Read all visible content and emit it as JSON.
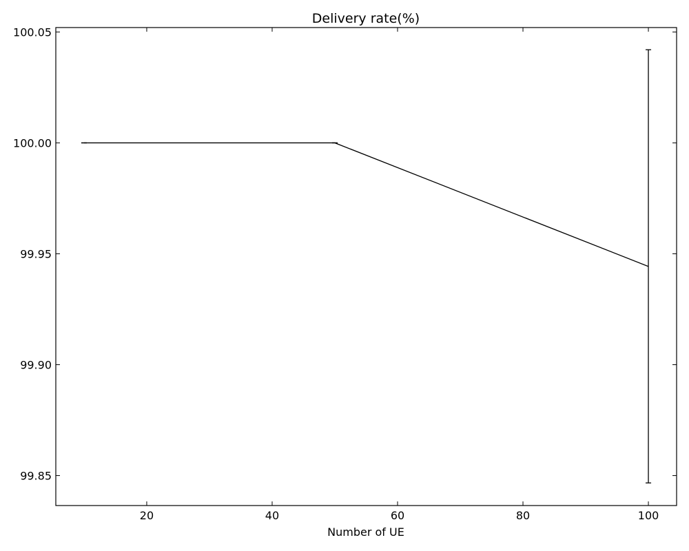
{
  "chart_data": {
    "type": "line",
    "title": "Delivery rate(%)",
    "xlabel": "Number of UE",
    "ylabel": "",
    "xlim": [
      5.5,
      104.5
    ],
    "ylim": [
      99.8365,
      100.052
    ],
    "xticks": [
      20,
      40,
      60,
      80,
      100
    ],
    "xtick_labels": [
      "20",
      "40",
      "60",
      "80",
      "100"
    ],
    "yticks": [
      99.85,
      99.9,
      99.95,
      100.0,
      100.05
    ],
    "ytick_labels": [
      "99.85",
      "99.90",
      "99.95",
      "100.00",
      "100.05"
    ],
    "grid": false,
    "series": [
      {
        "color": "#000000",
        "x": [
          10,
          50,
          100
        ],
        "y": [
          100.0,
          100.0,
          99.9443
        ],
        "yerr_low": [
          100.0,
          100.0,
          99.8467
        ],
        "yerr_high": [
          100.0,
          100.0,
          100.042
        ]
      }
    ]
  }
}
